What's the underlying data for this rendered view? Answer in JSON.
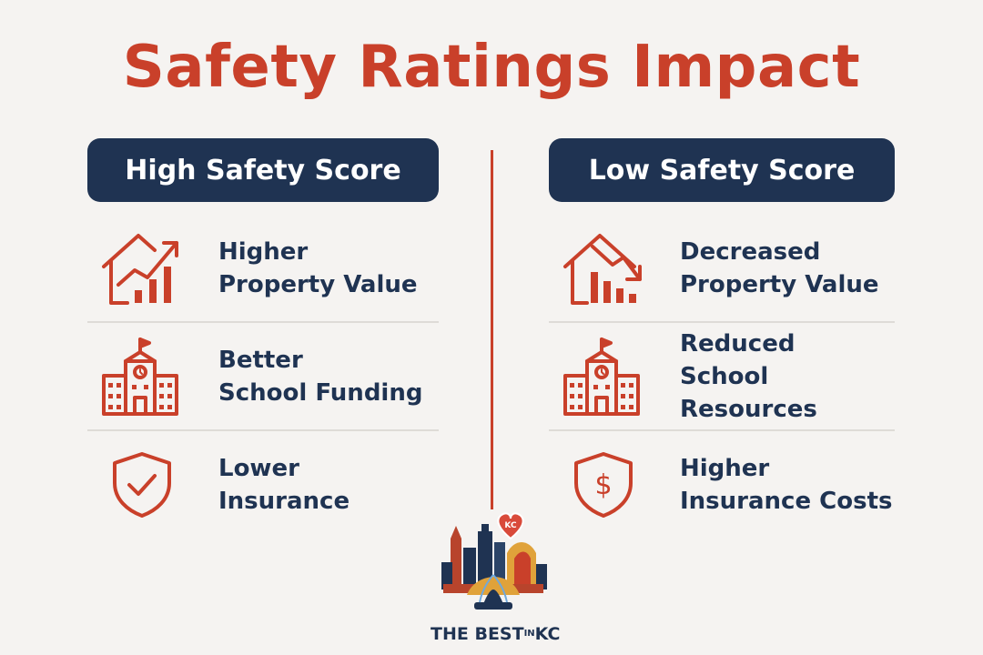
{
  "title": "Safety Ratings Impact",
  "colors": {
    "accent": "#c9402a",
    "navy": "#1f3352",
    "background": "#f5f3f1"
  },
  "high": {
    "header": "High Safety Score",
    "items": [
      {
        "icon": "house-rising-chart-icon",
        "line1": "Higher",
        "line2": "Property Value"
      },
      {
        "icon": "school-building-icon",
        "line1": "Better",
        "line2": "School Funding"
      },
      {
        "icon": "shield-check-icon",
        "line1": "Lower",
        "line2": "Insurance"
      }
    ]
  },
  "low": {
    "header": "Low Safety Score",
    "items": [
      {
        "icon": "house-falling-chart-icon",
        "line1": "Decreased",
        "line2": "Property Value"
      },
      {
        "icon": "school-building-icon",
        "line1": "Reduced",
        "line2": "School Resources"
      },
      {
        "icon": "shield-dollar-icon",
        "line1": "Higher",
        "line2": "Insurance Costs"
      }
    ]
  },
  "logo": {
    "heart_text": "KC",
    "brand_main": "THE BEST",
    "brand_small": "IN",
    "brand_end": "KC"
  }
}
